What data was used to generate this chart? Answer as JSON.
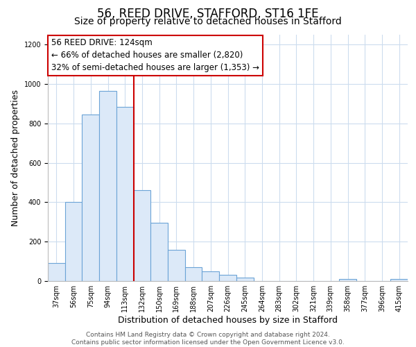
{
  "title": "56, REED DRIVE, STAFFORD, ST16 1FE",
  "subtitle": "Size of property relative to detached houses in Stafford",
  "xlabel": "Distribution of detached houses by size in Stafford",
  "ylabel": "Number of detached properties",
  "bar_labels": [
    "37sqm",
    "56sqm",
    "75sqm",
    "94sqm",
    "113sqm",
    "132sqm",
    "150sqm",
    "169sqm",
    "188sqm",
    "207sqm",
    "226sqm",
    "245sqm",
    "264sqm",
    "283sqm",
    "302sqm",
    "321sqm",
    "339sqm",
    "358sqm",
    "377sqm",
    "396sqm",
    "415sqm"
  ],
  "bar_heights": [
    90,
    400,
    845,
    965,
    885,
    460,
    295,
    160,
    70,
    50,
    33,
    18,
    0,
    0,
    0,
    0,
    0,
    10,
    0,
    0,
    10
  ],
  "bar_color": "#dce9f8",
  "bar_edge_color": "#6ba3d6",
  "marker_line_color": "#cc0000",
  "marker_line_index": 5,
  "annotation_title": "56 REED DRIVE: 124sqm",
  "annotation_line1": "← 66% of detached houses are smaller (2,820)",
  "annotation_line2": "32% of semi-detached houses are larger (1,353) →",
  "annotation_box_color": "#ffffff",
  "annotation_box_edge": "#cc0000",
  "ylim": [
    0,
    1250
  ],
  "yticks": [
    0,
    200,
    400,
    600,
    800,
    1000,
    1200
  ],
  "footer1": "Contains HM Land Registry data © Crown copyright and database right 2024.",
  "footer2": "Contains public sector information licensed under the Open Government Licence v3.0.",
  "bg_color": "#ffffff",
  "grid_color": "#ccdcee",
  "title_fontsize": 12,
  "subtitle_fontsize": 10,
  "axis_label_fontsize": 9,
  "tick_fontsize": 7,
  "footer_fontsize": 6.5,
  "annotation_fontsize": 8.5
}
